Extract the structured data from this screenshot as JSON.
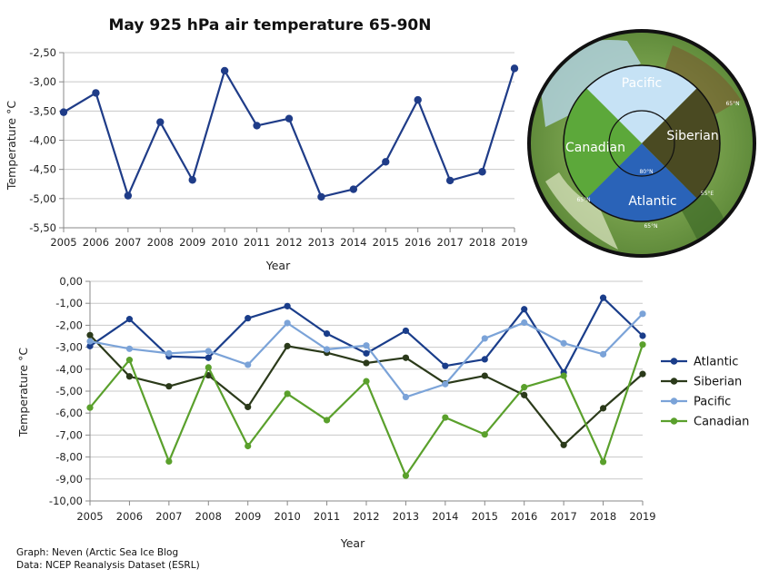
{
  "colors": {
    "series1": "#1f3c88",
    "atlantic": "#1a3d8a",
    "siberian": "#2b3a1a",
    "pacific": "#7ba3d8",
    "canadian": "#5aa02c",
    "grid": "#c8c8c8",
    "axis": "#888888"
  },
  "chart_data": [
    {
      "type": "line",
      "title": "May 925 hPa air temperature 65-90N",
      "xlabel": "Year",
      "ylabel": "Temperature °C",
      "x": [
        2005,
        2006,
        2007,
        2008,
        2009,
        2010,
        2011,
        2012,
        2013,
        2014,
        2015,
        2016,
        2017,
        2018,
        2019
      ],
      "ylim": [
        -5.5,
        -2.5
      ],
      "yticks": [
        -2.5,
        -3.0,
        -3.5,
        -4.0,
        -4.5,
        -5.0,
        -5.5
      ],
      "ytick_labels": [
        "-2,50",
        "-3,00",
        "-3,50",
        "-4,00",
        "-4,50",
        "-5,00",
        "-5,50"
      ],
      "series": [
        {
          "name": "65-90N",
          "values": [
            -3.52,
            -3.19,
            -4.95,
            -3.69,
            -4.68,
            -2.81,
            -3.75,
            -3.63,
            -4.97,
            -4.84,
            -4.37,
            -3.31,
            -4.69,
            -4.54,
            -2.77
          ]
        }
      ],
      "grid": "horizontal"
    },
    {
      "type": "line",
      "title": "",
      "xlabel": "Year",
      "ylabel": "Temperature °C",
      "x": [
        2005,
        2006,
        2007,
        2008,
        2009,
        2010,
        2011,
        2012,
        2013,
        2014,
        2015,
        2016,
        2017,
        2018,
        2019
      ],
      "ylim": [
        -10.0,
        0.0
      ],
      "yticks": [
        0,
        -1,
        -2,
        -3,
        -4,
        -5,
        -6,
        -7,
        -8,
        -9,
        -10
      ],
      "ytick_labels": [
        "0,00",
        "-1,00",
        "-2,00",
        "-3,00",
        "-4,00",
        "-5,00",
        "-6,00",
        "-7,00",
        "-8,00",
        "-9,00",
        "-10,00"
      ],
      "series": [
        {
          "name": "Atlantic",
          "values": [
            -2.95,
            -1.72,
            -3.42,
            -3.48,
            -1.68,
            -1.13,
            -2.38,
            -3.28,
            -2.25,
            -3.85,
            -3.55,
            -1.27,
            -4.15,
            -0.75,
            -2.48
          ]
        },
        {
          "name": "Siberian",
          "values": [
            -2.45,
            -4.33,
            -4.78,
            -4.28,
            -5.72,
            -2.95,
            -3.25,
            -3.72,
            -3.48,
            -4.65,
            -4.3,
            -5.18,
            -7.45,
            -5.78,
            -4.22
          ]
        },
        {
          "name": "Pacific",
          "values": [
            -2.73,
            -3.07,
            -3.28,
            -3.18,
            -3.8,
            -1.9,
            -3.1,
            -2.92,
            -5.27,
            -4.68,
            -2.6,
            -1.88,
            -2.82,
            -3.32,
            -1.48
          ]
        },
        {
          "name": "Canadian",
          "values": [
            -5.75,
            -3.58,
            -8.2,
            -3.92,
            -7.5,
            -5.12,
            -6.32,
            -4.55,
            -8.85,
            -6.2,
            -6.97,
            -4.82,
            -4.3,
            -8.22,
            -2.88
          ]
        }
      ],
      "legend": "right",
      "grid": "horizontal"
    }
  ],
  "map": {
    "regions": [
      "Pacific",
      "Siberian",
      "Canadian",
      "Atlantic"
    ],
    "small_labels": [
      "80°N",
      "65°N",
      "55°E",
      "65°N",
      "65°N"
    ]
  },
  "credits": {
    "line1": "Graph: Neven (Arctic Sea Ice Blog",
    "line2": "Data: NCEP Reanalysis Dataset (ESRL)"
  }
}
